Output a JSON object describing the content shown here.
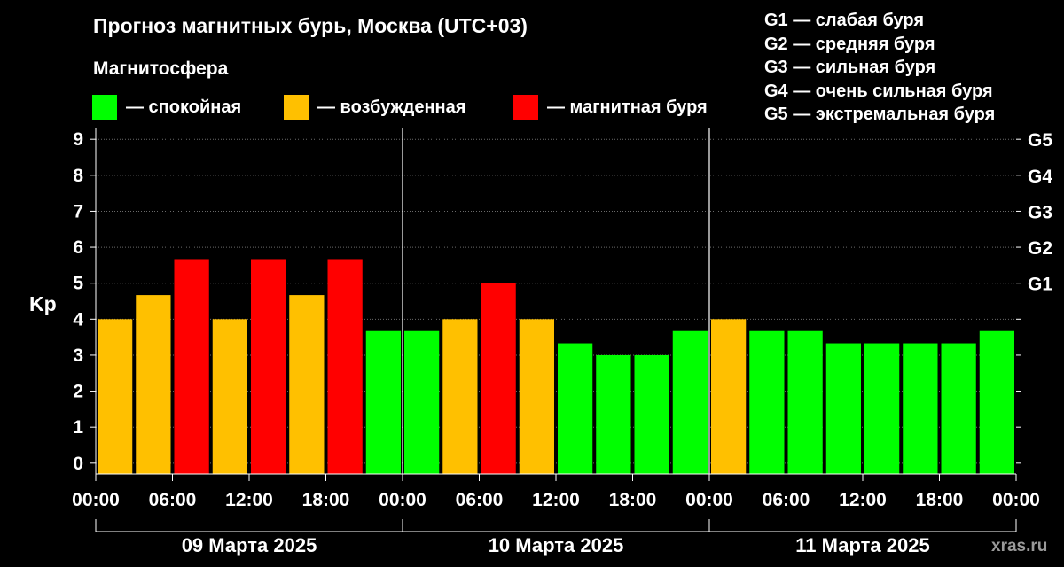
{
  "title": "Прогноз магнитных бурь, Москва (UTC+03)",
  "subtitle": "Магнитосфера",
  "legend": [
    {
      "label": "— спокойная",
      "color": "#00ff00"
    },
    {
      "label": "— возбужденная",
      "color": "#ffc000"
    },
    {
      "label": "— магнитная буря",
      "color": "#ff0000"
    }
  ],
  "g_scale": [
    "G1 — слабая буря",
    "G2 — средняя буря",
    "G3 — сильная буря",
    "G4 — очень сильная буря",
    "G5 — экстремальная буря"
  ],
  "watermark": "xras.ru",
  "chart_data": {
    "type": "bar",
    "ylabel": "Kp",
    "ylim": [
      -0.3,
      9.3
    ],
    "yticks": [
      "0",
      "1",
      "2",
      "3",
      "4",
      "5",
      "6",
      "7",
      "8",
      "9"
    ],
    "right_ticks": [
      {
        "kp": 5,
        "label": "G1"
      },
      {
        "kp": 6,
        "label": "G2"
      },
      {
        "kp": 7,
        "label": "G3"
      },
      {
        "kp": 8,
        "label": "G4"
      },
      {
        "kp": 9,
        "label": "G5"
      }
    ],
    "grid": true,
    "time_labels": [
      "00:00",
      "06:00",
      "12:00",
      "18:00",
      "00:00",
      "06:00",
      "12:00",
      "18:00",
      "00:00",
      "06:00",
      "12:00",
      "18:00",
      "00:00"
    ],
    "days": [
      "09 Марта 2025",
      "10 Марта 2025",
      "11 Марта 2025"
    ],
    "interval_hours": 3,
    "values": [
      4.0,
      4.67,
      5.67,
      4.0,
      5.67,
      4.67,
      5.67,
      3.67,
      3.67,
      4.0,
      5.0,
      4.0,
      3.33,
      3.0,
      3.0,
      3.67,
      4.0,
      3.67,
      3.67,
      3.33,
      3.33,
      3.33,
      3.33,
      3.67
    ],
    "levels": [
      "excited",
      "excited",
      "storm",
      "excited",
      "storm",
      "excited",
      "storm",
      "quiet",
      "quiet",
      "excited",
      "storm",
      "excited",
      "quiet",
      "quiet",
      "quiet",
      "quiet",
      "excited",
      "quiet",
      "quiet",
      "quiet",
      "quiet",
      "quiet",
      "quiet",
      "quiet"
    ],
    "colors": {
      "quiet": "#00ff00",
      "excited": "#ffc000",
      "storm": "#ff0000"
    }
  }
}
